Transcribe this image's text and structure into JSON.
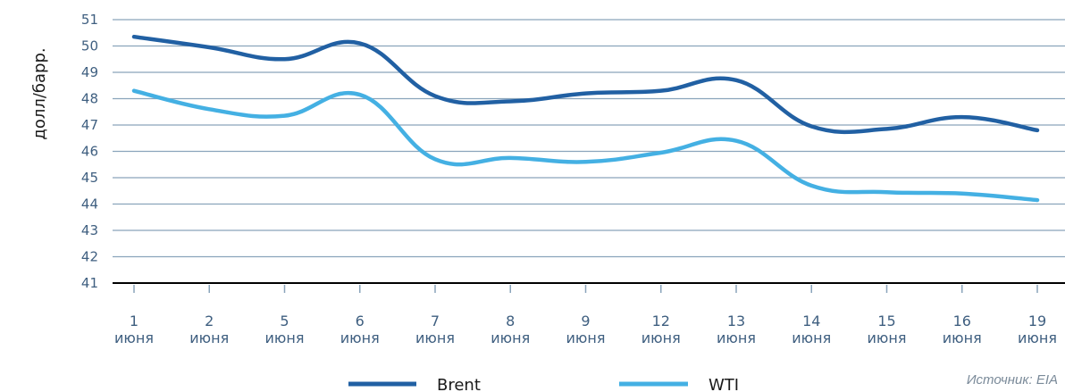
{
  "chart_data": {
    "type": "line",
    "ylabel": "долл/барр.",
    "ylim": [
      41,
      51
    ],
    "yticks": [
      41,
      42,
      43,
      44,
      45,
      46,
      47,
      48,
      49,
      50,
      51
    ],
    "categories": [
      {
        "day": "1",
        "month": "июня"
      },
      {
        "day": "2",
        "month": "июня"
      },
      {
        "day": "5",
        "month": "июня"
      },
      {
        "day": "6",
        "month": "июня"
      },
      {
        "day": "7",
        "month": "июня"
      },
      {
        "day": "8",
        "month": "июня"
      },
      {
        "day": "9",
        "month": "июня"
      },
      {
        "day": "12",
        "month": "июня"
      },
      {
        "day": "13",
        "month": "июня"
      },
      {
        "day": "14",
        "month": "июня"
      },
      {
        "day": "15",
        "month": "июня"
      },
      {
        "day": "16",
        "month": "июня"
      },
      {
        "day": "19",
        "month": "июня"
      }
    ],
    "series": [
      {
        "name": "Brent",
        "color": "#2160a3",
        "values": [
          50.35,
          49.95,
          49.5,
          50.1,
          48.1,
          47.9,
          48.2,
          48.3,
          48.7,
          46.95,
          46.85,
          47.3,
          46.8
        ]
      },
      {
        "name": "WTI",
        "color": "#44b0e3",
        "values": [
          48.3,
          47.6,
          47.35,
          48.15,
          45.7,
          45.75,
          45.6,
          45.95,
          46.4,
          44.7,
          44.45,
          44.4,
          44.15
        ]
      }
    ],
    "grid": true,
    "legend_position": "bottom"
  },
  "source": "Источник: EIA"
}
